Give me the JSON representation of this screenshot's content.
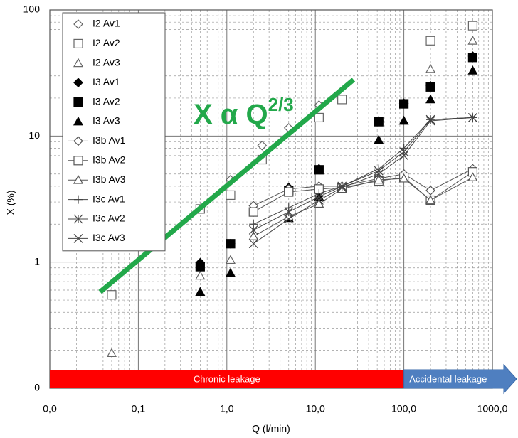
{
  "chart_data": {
    "type": "scatter",
    "xlabel": "Q (l/min)",
    "ylabel": "X (%)",
    "xscale": "log",
    "yscale": "log",
    "xlim": [
      0.01,
      1000
    ],
    "ylim": [
      0.1,
      100
    ],
    "xticks": [
      {
        "value": 0.01,
        "label": "0,0"
      },
      {
        "value": 0.1,
        "label": "0,1"
      },
      {
        "value": 1,
        "label": "1,0"
      },
      {
        "value": 10,
        "label": "10,0"
      },
      {
        "value": 100,
        "label": "100,0"
      },
      {
        "value": 1000,
        "label": "1000,0"
      }
    ],
    "yticks": [
      {
        "value": 0.1,
        "label": "0"
      },
      1,
      10,
      100
    ],
    "grid": true,
    "minor_grid": true,
    "legend": "upper left",
    "series": [
      {
        "name": "I2 Av1",
        "color": "#666666",
        "marker": "diamond",
        "filled": false,
        "line": false,
        "x": [
          1.1,
          2.5,
          5,
          11,
          200,
          600
        ],
        "values": [
          4.5,
          8.4,
          11.6,
          17.6,
          57,
          75
        ]
      },
      {
        "name": "I2 Av2",
        "color": "#666666",
        "marker": "square",
        "filled": false,
        "line": false,
        "x": [
          0.05,
          0.5,
          1.1,
          2.5,
          11,
          20,
          200,
          600
        ],
        "values": [
          0.55,
          2.64,
          3.4,
          6.5,
          14,
          19.5,
          57,
          75
        ]
      },
      {
        "name": "I2 Av3",
        "color": "#666666",
        "marker": "triangle",
        "filled": false,
        "line": false,
        "x": [
          0.05,
          0.5,
          1.1,
          200,
          600
        ],
        "values": [
          0.19,
          0.78,
          1.04,
          34,
          57
        ]
      },
      {
        "name": "I3 Av1",
        "color": "#000000",
        "marker": "diamond",
        "filled": true,
        "line": false,
        "x": [
          0.5,
          1.1,
          5,
          11,
          52,
          100,
          200,
          600
        ],
        "values": [
          0.99,
          1.4,
          3.9,
          5.5,
          13.2,
          18.2,
          25,
          43
        ]
      },
      {
        "name": "I3 Av2",
        "color": "#000000",
        "marker": "square",
        "filled": true,
        "line": false,
        "x": [
          0.5,
          1.1,
          5,
          11,
          52,
          100,
          200,
          600
        ],
        "values": [
          0.92,
          1.4,
          3.7,
          5.4,
          13,
          18,
          24.5,
          42
        ]
      },
      {
        "name": "I3 Av3",
        "color": "#000000",
        "marker": "triangle",
        "filled": true,
        "line": false,
        "x": [
          0.5,
          1.1,
          5,
          11,
          52,
          100,
          200,
          600
        ],
        "values": [
          0.58,
          0.82,
          2.23,
          3.3,
          9.3,
          13.2,
          19.5,
          33
        ]
      },
      {
        "name": "I3b Av1",
        "color": "#555555",
        "marker": "diamond",
        "filled": false,
        "line": true,
        "x": [
          2,
          5,
          11,
          20,
          52,
          100,
          200,
          600
        ],
        "values": [
          2.8,
          3.8,
          4.0,
          4.0,
          4.6,
          5.0,
          3.7,
          5.5
        ]
      },
      {
        "name": "I3b Av2",
        "color": "#555555",
        "marker": "square",
        "filled": false,
        "line": true,
        "x": [
          2,
          5,
          11,
          20,
          52,
          100,
          200,
          600
        ],
        "values": [
          2.5,
          3.6,
          3.8,
          3.9,
          4.4,
          4.7,
          3.1,
          5.2
        ]
      },
      {
        "name": "I3b Av3",
        "color": "#555555",
        "marker": "triangle",
        "filled": false,
        "line": true,
        "x": [
          2,
          5,
          11,
          20,
          52,
          100,
          200,
          600
        ],
        "values": [
          1.6,
          2.3,
          2.9,
          3.8,
          4.5,
          4.6,
          3.1,
          4.7
        ]
      },
      {
        "name": "I3c Av1",
        "color": "#444444",
        "marker": "plus",
        "filled": false,
        "line": true,
        "x": [
          2,
          5,
          11,
          20,
          52,
          100,
          200,
          600
        ],
        "values": [
          2.0,
          2.7,
          3.5,
          4.0,
          5.5,
          8.0,
          13.5,
          14
        ]
      },
      {
        "name": "I3c Av2",
        "color": "#444444",
        "marker": "star",
        "filled": false,
        "line": true,
        "x": [
          2,
          5,
          11,
          20,
          52,
          100,
          200,
          600
        ],
        "values": [
          1.8,
          2.5,
          3.3,
          4.0,
          5.3,
          7.5,
          13.5,
          14
        ]
      },
      {
        "name": "I3c Av3",
        "color": "#444444",
        "marker": "cross",
        "filled": false,
        "line": true,
        "x": [
          2,
          5,
          11,
          20,
          52,
          100,
          200,
          600
        ],
        "values": [
          1.4,
          2.2,
          3.1,
          3.9,
          5.0,
          7.0,
          13.2,
          14
        ]
      }
    ],
    "trend_line": {
      "text": "X α Q",
      "superscript": "2/3",
      "color": "#22a84a",
      "x": [
        0.037,
        27
      ],
      "values": [
        0.58,
        28
      ]
    },
    "bands": [
      {
        "label": "Chronic leakage",
        "color": "#ff0000",
        "x": [
          0.01,
          100
        ]
      },
      {
        "label": "Accidental leakage",
        "color": "#4f7fc0",
        "x": [
          100,
          1000
        ]
      }
    ]
  }
}
